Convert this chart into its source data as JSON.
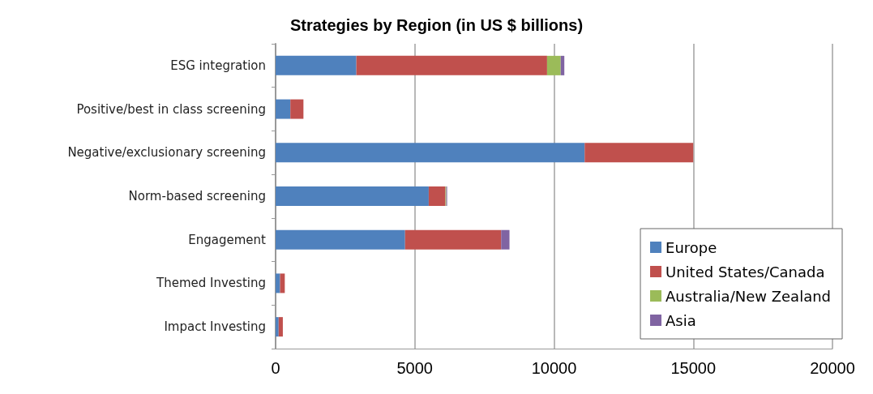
{
  "chart_data": {
    "type": "bar",
    "orientation": "horizontal",
    "stacked": true,
    "title": "Strategies by Region (in US $ billions)",
    "categories": [
      "ESG integration",
      "Positive/best in class screening",
      "Negative/exclusionary screening",
      "Norm-based screening",
      "Engagement",
      "Themed Investing",
      "Impact Investing"
    ],
    "series": [
      {
        "name": "Europe",
        "color": "#4f81bd",
        "values": [
          2900,
          530,
          11100,
          5500,
          4650,
          160,
          110
        ]
      },
      {
        "name": "United States/Canada",
        "color": "#c0504d",
        "values": [
          6850,
          470,
          3900,
          600,
          3450,
          170,
          150
        ]
      },
      {
        "name": "Australia/New Zealand",
        "color": "#9bbb59",
        "values": [
          490,
          null,
          null,
          30,
          null,
          null,
          null
        ]
      },
      {
        "name": "Asia",
        "color": "#8064a2",
        "values": [
          130,
          null,
          null,
          30,
          300,
          null,
          null
        ]
      }
    ],
    "xlim": [
      0,
      20000
    ],
    "xticks": [
      0,
      5000,
      10000,
      15000,
      20000
    ],
    "grid": "x",
    "legend": "bottom right"
  }
}
